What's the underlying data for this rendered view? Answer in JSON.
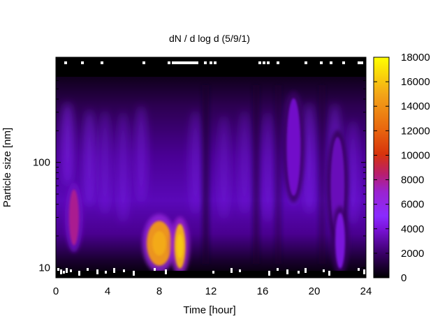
{
  "chart_data": {
    "type": "heatmap",
    "title": "dN / d log d (5/9/1)",
    "xlabel": "Time [hour]",
    "ylabel": "Particle size [nm]",
    "x_range": [
      0,
      24
    ],
    "y_range_nm": [
      8,
      1000
    ],
    "y_scale": "log",
    "x_ticks": [
      "0",
      "4",
      "8",
      "12",
      "16",
      "20",
      "24"
    ],
    "y_ticks": [
      "10",
      "100"
    ],
    "colorbar": {
      "range": [
        0,
        18000
      ],
      "ticks": [
        "0",
        "2000",
        "4000",
        "6000",
        "8000",
        "10000",
        "12000",
        "14000",
        "16000",
        "18000"
      ],
      "colormap": [
        "#000000",
        "#3a0068",
        "#7a12d8",
        "#8a2bff",
        "#9a23d0",
        "#b81e6e",
        "#d7330c",
        "#e8650e",
        "#f3a418",
        "#ffff00"
      ]
    },
    "grid": false,
    "legend": "colorbar-right",
    "features": [
      {
        "time_h": 1.4,
        "size_nm": 30,
        "value": 8000
      },
      {
        "time_h": 8.0,
        "size_nm": 17,
        "value": 14500
      },
      {
        "time_h": 9.6,
        "size_nm": 16,
        "value": 15500
      },
      {
        "time_h": 18.4,
        "size_nm": 140,
        "value": 3800
      },
      {
        "time_h": 21.8,
        "size_nm": 60,
        "value": 3500
      },
      {
        "time_h": 22.0,
        "size_nm": 18,
        "value": 4200
      }
    ]
  }
}
